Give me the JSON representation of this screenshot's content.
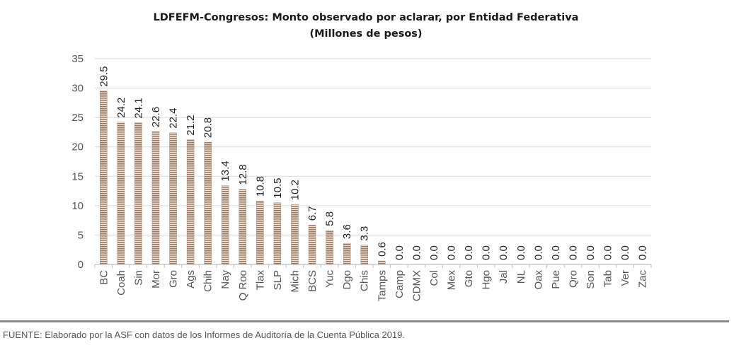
{
  "chart_data": {
    "type": "bar",
    "title": "LDFEFM-Congresos: Monto observado por aclarar, por Entidad Federativa",
    "subtitle": "(Millones de pesos)",
    "categories": [
      "BC",
      "Coah",
      "Sin",
      "Mor",
      "Gro",
      "Ags",
      "Chih",
      "Nay",
      "Q Roo",
      "Tlax",
      "SLP",
      "Mich",
      "BCS",
      "Yuc",
      "Dgo",
      "Chis",
      "Tamps",
      "Camp",
      "CDMX",
      "Col",
      "Mex",
      "Gto",
      "Hgo",
      "Jal",
      "NL",
      "Oax",
      "Pue",
      "Qro",
      "Son",
      "Tab",
      "Ver",
      "Zac"
    ],
    "values": [
      29.5,
      24.2,
      24.1,
      22.6,
      22.4,
      21.2,
      20.8,
      13.4,
      12.8,
      10.8,
      10.5,
      10.2,
      6.7,
      5.8,
      3.6,
      3.3,
      0.6,
      0.0,
      0.0,
      0.0,
      0.0,
      0.0,
      0.0,
      0.0,
      0.0,
      0.0,
      0.0,
      0.0,
      0.0,
      0.0,
      0.0,
      0.0
    ],
    "data_labels": [
      "29.5",
      "24.2",
      "24.1",
      "22.6",
      "22.4",
      "21.2",
      "20.8",
      "13.4",
      "12.8",
      "10.8",
      "10.5",
      "10.2",
      "6.7",
      "5.8",
      "3.6",
      "3.3",
      "0.6",
      "0.0",
      "0.0",
      "0.0",
      "0.0",
      "0.0",
      "0.0",
      "0.0",
      "0.0",
      "0.0",
      "0.0",
      "0.0",
      "0.0",
      "0.0",
      "0.0",
      "0.0"
    ],
    "yticks": [
      "0",
      "5",
      "10",
      "15",
      "20",
      "25",
      "30",
      "35"
    ],
    "ylim": [
      0,
      35
    ],
    "grid": true,
    "bar_color": "#9a7a64",
    "xlabel": "",
    "ylabel": ""
  },
  "source": "FUENTE: Elaborado por la ASF con datos de los Informes de Auditoría de la Cuenta Pública 2019."
}
